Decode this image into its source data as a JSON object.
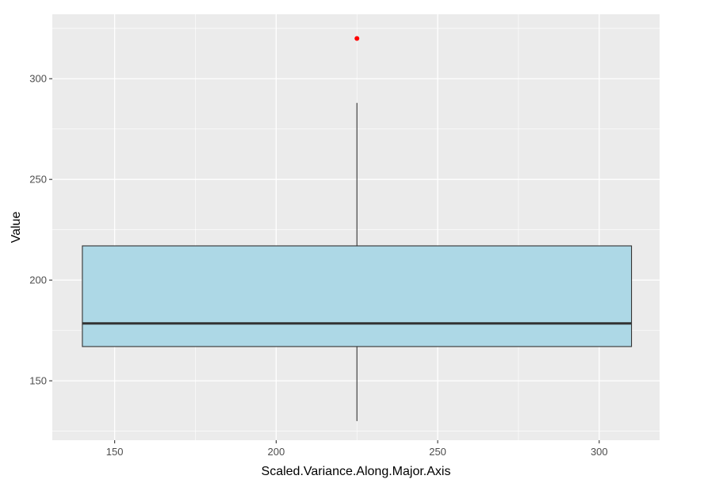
{
  "chart_data": {
    "type": "boxplot",
    "xlabel": "Scaled.Variance.Along.Major.Axis",
    "ylabel": "Value",
    "xlim": [
      130.7,
      318.7
    ],
    "ylim": [
      120.5,
      332
    ],
    "x_ticks": [
      150,
      200,
      250,
      300
    ],
    "y_ticks": [
      150,
      200,
      250,
      300
    ],
    "grid": true,
    "box": {
      "x_left": 140,
      "x_right": 310,
      "x_center": 225,
      "q1": 167,
      "median": 178.5,
      "q3": 217,
      "whisker_low": 130,
      "whisker_high": 288,
      "outliers": [
        320
      ]
    },
    "colors": {
      "panel_background": "#ebebeb",
      "grid": "#ffffff",
      "box_fill": "#add8e6",
      "box_stroke": "#333333",
      "outlier": "#ff0000"
    }
  }
}
